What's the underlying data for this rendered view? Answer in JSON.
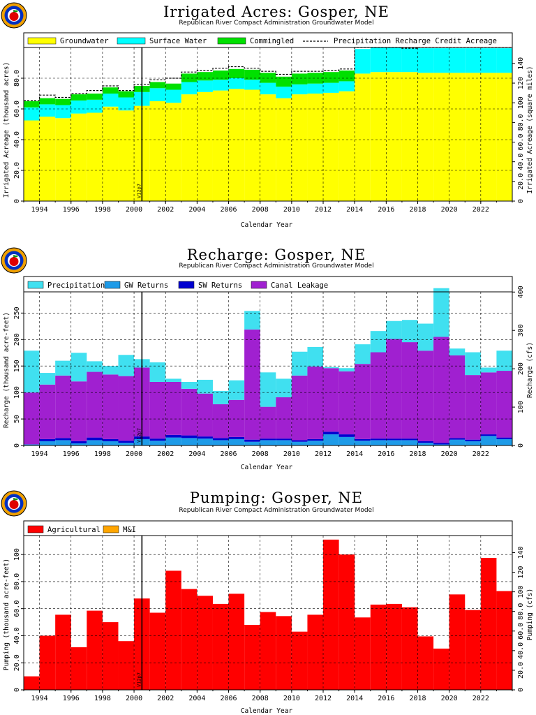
{
  "labels": {
    "xlabel": "Calendar Year",
    "subtitle": "Republican River Compact Administration Groundwater Model",
    "marker": "V12p7"
  },
  "colors": {
    "groundwater": "#ffff00",
    "surface_water": "#00ffff",
    "commingled": "#00e000",
    "precipitation": "#40e0f0",
    "gw_returns": "#1e9be8",
    "sw_returns": "#0000d0",
    "canal_leakage": "#a020d0",
    "agricultural": "#ff0000",
    "mi": "#ffa500"
  },
  "chart_data": [
    {
      "id": "acres",
      "type": "area",
      "title": "Irrigated Acres: Gosper, NE",
      "subtitle": "Republican River Compact Administration Groundwater Model",
      "xlabel": "Calendar Year",
      "ylabel": "Irrigated Acreage (thousand acres)",
      "ylabel_right": "Irrigated Acreage (square miles)",
      "xlim": [
        1993,
        2024
      ],
      "ylim": [
        0,
        100
      ],
      "y_ticks": [
        "0",
        "20.0",
        "40.0",
        "60.0",
        "80.0"
      ],
      "y2_ticks": [
        "0",
        "20.0",
        "40.0",
        "60.0",
        "80.0",
        "100",
        "120",
        "140"
      ],
      "y2_factor": 1.5625,
      "x_tick_labels": [
        "1994",
        "1996",
        "1998",
        "2000",
        "2002",
        "2004",
        "2006",
        "2008",
        "2010",
        "2012",
        "2014",
        "2016",
        "2018",
        "2020",
        "2022"
      ],
      "marker_year": 2000.5,
      "marker_label": "V12p7",
      "grid": true,
      "legend_position": "top",
      "years": [
        1993,
        1994,
        1995,
        1996,
        1997,
        1998,
        1999,
        2000,
        2001,
        2002,
        2003,
        2004,
        2005,
        2006,
        2007,
        2008,
        2009,
        2010,
        2011,
        2012,
        2013,
        2014,
        2015,
        2016,
        2017,
        2018,
        2019,
        2020,
        2021,
        2022,
        2023
      ],
      "series": [
        {
          "name": "Groundwater",
          "color_key": "groundwater",
          "values": [
            52.5,
            55.0,
            54.0,
            57.0,
            57.5,
            61.5,
            59.0,
            62.0,
            65.0,
            64.0,
            69.5,
            71.0,
            72.0,
            73.0,
            72.5,
            69.5,
            67.0,
            69.5,
            70.0,
            70.5,
            71.5,
            83.0,
            84.0,
            84.0,
            84.0,
            83.5,
            83.5,
            83.5,
            83.5,
            83.5,
            83.5
          ]
        },
        {
          "name": "Surface Water",
          "color_key": "surface_water",
          "values": [
            8.5,
            8.0,
            8.5,
            8.5,
            8.5,
            8.5,
            8.5,
            9.0,
            8.5,
            8.5,
            8.0,
            7.5,
            7.0,
            7.0,
            6.5,
            7.5,
            7.5,
            6.5,
            6.5,
            6.5,
            6.5,
            16.0,
            16.0,
            16.0,
            15.5,
            16.0,
            16.0,
            16.0,
            16.0,
            16.0,
            16.0
          ]
        },
        {
          "name": "Commingled",
          "color_key": "commingled",
          "values": [
            4.0,
            4.0,
            4.0,
            4.0,
            4.0,
            4.0,
            4.0,
            4.0,
            4.0,
            4.0,
            5.5,
            5.5,
            6.0,
            6.0,
            6.5,
            6.5,
            6.5,
            7.0,
            7.0,
            7.0,
            7.0,
            0,
            0,
            0,
            0,
            0,
            0,
            0,
            0,
            0,
            0
          ]
        }
      ],
      "dashed_line": {
        "name": "Precipitation Recharge Credit Acreage",
        "values": [
          65.5,
          69.0,
          67.5,
          70.0,
          72.0,
          75.0,
          72.0,
          76.0,
          79.0,
          80.0,
          84.0,
          85.0,
          86.5,
          87.5,
          86.5,
          84.5,
          82.5,
          84.5,
          84.5,
          85.0,
          86.0,
          100.0,
          100.0,
          100.0,
          99.5,
          100.0,
          100.0,
          100.0,
          100.0,
          100.0,
          100.0
        ]
      }
    },
    {
      "id": "recharge",
      "type": "area",
      "title": "Recharge: Gosper, NE",
      "subtitle": "Republican River Compact Administration Groundwater Model",
      "xlabel": "Calendar Year",
      "ylabel": "Recharge (thousand acre-feet)",
      "ylabel_right": "Recharge (cfs)",
      "xlim": [
        1993,
        2024
      ],
      "ylim": [
        0,
        290
      ],
      "y_ticks": [
        "0",
        "50",
        "100",
        "150",
        "200",
        "250"
      ],
      "y_tick_values": [
        0,
        50,
        100,
        150,
        200,
        250
      ],
      "y2_ticks": [
        "0",
        "100",
        "200",
        "300",
        "400"
      ],
      "y2_tick_values": [
        0,
        100,
        200,
        300,
        400
      ],
      "y2_factor": 1.381,
      "x_tick_labels": [
        "1994",
        "1996",
        "1998",
        "2000",
        "2002",
        "2004",
        "2006",
        "2008",
        "2010",
        "2012",
        "2014",
        "2016",
        "2018",
        "2020",
        "2022"
      ],
      "marker_year": 2000.5,
      "marker_label": "V12p7",
      "grid": true,
      "legend_position": "top",
      "years": [
        1993,
        1994,
        1995,
        1996,
        1997,
        1998,
        1999,
        2000,
        2001,
        2002,
        2003,
        2004,
        2005,
        2006,
        2007,
        2008,
        2009,
        2010,
        2011,
        2012,
        2013,
        2014,
        2015,
        2016,
        2017,
        2018,
        2019,
        2020,
        2021,
        2022,
        2023
      ],
      "series": [
        {
          "name": "GW Returns",
          "color_key": "gw_returns",
          "values": [
            2,
            8,
            10,
            4,
            10,
            8,
            5,
            12,
            9,
            15,
            14,
            13,
            10,
            12,
            7,
            10,
            10,
            7,
            9,
            21,
            16,
            9,
            10,
            10,
            10,
            5,
            2,
            11,
            8,
            18,
            12
          ]
        },
        {
          "name": "SW Returns",
          "color_key": "sw_returns",
          "values": [
            0,
            4,
            4,
            4,
            5,
            4,
            4,
            5,
            4,
            5,
            5,
            4,
            4,
            4,
            4,
            3,
            3,
            3,
            3,
            5,
            5,
            3,
            3,
            3,
            3,
            3,
            3,
            3,
            3,
            3,
            3
          ]
        },
        {
          "name": "Canal Leakage",
          "color_key": "canal_leakage",
          "values": [
            98,
            103,
            118,
            113,
            124,
            122,
            122,
            130,
            107,
            100,
            88,
            81,
            64,
            70,
            208,
            60,
            78,
            122,
            137,
            120,
            119,
            142,
            163,
            188,
            182,
            171,
            200,
            156,
            122,
            117,
            126
          ]
        },
        {
          "name": "Precipitation",
          "color_key": "precipitation",
          "values": [
            79,
            22,
            28,
            54,
            20,
            16,
            40,
            16,
            37,
            6,
            13,
            26,
            25,
            37,
            35,
            65,
            35,
            45,
            37,
            2,
            6,
            37,
            40,
            34,
            42,
            51,
            92,
            13,
            43,
            9,
            38
          ]
        }
      ]
    },
    {
      "id": "pumping",
      "type": "bar",
      "title": "Pumping: Gosper, NE",
      "subtitle": "Republican River Compact Administration Groundwater Model",
      "xlabel": "Calendar Year",
      "ylabel": "Pumping (thousand acre-feet)",
      "ylabel_right": "Pumping (cfs)",
      "xlim": [
        1993,
        2024
      ],
      "ylim": [
        0,
        114
      ],
      "y_ticks": [
        "0",
        "20.0",
        "40.0",
        "60.0",
        "80.0",
        "100"
      ],
      "y_tick_values": [
        0,
        20,
        40,
        60,
        80,
        100
      ],
      "y2_ticks": [
        "0",
        "20.0",
        "40.0",
        "60.0",
        "80.0",
        "100",
        "120",
        "140"
      ],
      "y2_tick_values": [
        0,
        20,
        40,
        60,
        80,
        100,
        120,
        140
      ],
      "y2_factor": 1.381,
      "x_tick_labels": [
        "1994",
        "1996",
        "1998",
        "2000",
        "2002",
        "2004",
        "2006",
        "2008",
        "2010",
        "2012",
        "2014",
        "2016",
        "2018",
        "2020",
        "2022"
      ],
      "marker_year": 2000.5,
      "marker_label": "V12p7",
      "grid": true,
      "legend_position": "top",
      "years": [
        1993,
        1994,
        1995,
        1996,
        1997,
        1998,
        1999,
        2000,
        2001,
        2002,
        2003,
        2004,
        2005,
        2006,
        2007,
        2008,
        2009,
        2010,
        2011,
        2012,
        2013,
        2014,
        2015,
        2016,
        2017,
        2018,
        2019,
        2020,
        2021,
        2022,
        2023
      ],
      "series": [
        {
          "name": "Agricultural",
          "color_key": "agricultural",
          "values": [
            10,
            40,
            55.5,
            31.5,
            58.5,
            50,
            36,
            67.5,
            57,
            88,
            74.5,
            69.5,
            63.5,
            71,
            48,
            57.5,
            54.5,
            43,
            55.5,
            111,
            100,
            53.5,
            63,
            63.5,
            61,
            39.5,
            30.5,
            70.5,
            59,
            97.5,
            73
          ]
        },
        {
          "name": "M&I",
          "color_key": "mi",
          "values": [
            0,
            0,
            0,
            0,
            0,
            0,
            0,
            0,
            0,
            0,
            0,
            0,
            0,
            0,
            0,
            0,
            0,
            0,
            0,
            0,
            0,
            0,
            0,
            0,
            0,
            0,
            0,
            0,
            0,
            0,
            0
          ]
        }
      ]
    }
  ]
}
